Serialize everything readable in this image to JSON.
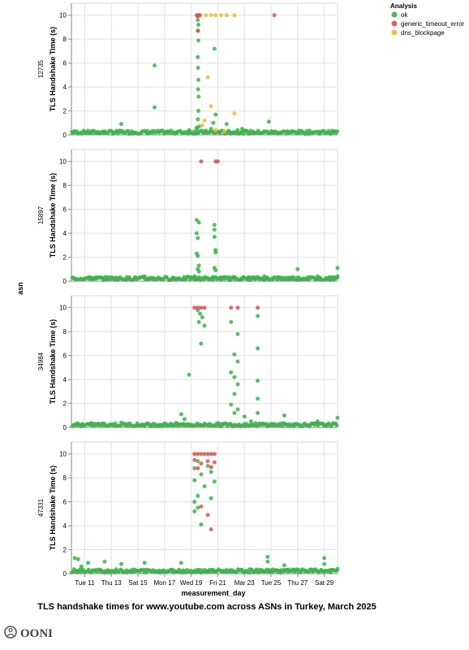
{
  "chart_data": {
    "type": "scatter",
    "title": "TLS handshake times for www.youtube.com across ASNs in Turkey, March 2025",
    "xlabel": "measurement_day",
    "ylabel": "TLS Handshake Time (s)",
    "row_label": "asn",
    "x_ticks": [
      "Tue 11",
      "Thu 13",
      "Sat 15",
      "Mon 17",
      "Wed 19",
      "Fri 21",
      "Mar 23",
      "Tue 25",
      "Thu 27",
      "Sat 29"
    ],
    "x_range": [
      "2025-03-10",
      "2025-03-30"
    ],
    "y_ticks": [
      0,
      2,
      4,
      6,
      8,
      10
    ],
    "ylim": [
      0,
      11
    ],
    "grid": true,
    "legend": {
      "title": "Analysis",
      "position": "top-right",
      "entries": [
        {
          "label": "ok",
          "color": "#3cb44b"
        },
        {
          "label": "generic_timeout_error",
          "color": "#d9534f"
        },
        {
          "label": "dns_blockpage",
          "color": "#f5b731"
        }
      ]
    },
    "facets": [
      {
        "asn": "12735",
        "series": {
          "ok": [
            [
              "2025-03-16T06:00",
              5.8
            ],
            [
              "2025-03-16T06:00",
              2.3
            ],
            [
              "2025-03-13T18:00",
              0.9
            ],
            [
              "2025-03-19T12:00",
              9.6
            ],
            [
              "2025-03-19T13:00",
              9.2
            ],
            [
              "2025-03-19T12:30",
              8.7
            ],
            [
              "2025-03-19T13:00",
              7.9
            ],
            [
              "2025-03-19T12:00",
              6.5
            ],
            [
              "2025-03-19T12:30",
              5.6
            ],
            [
              "2025-03-19T13:00",
              4.6
            ],
            [
              "2025-03-19T12:30",
              3.8
            ],
            [
              "2025-03-19T13:30",
              3.2
            ],
            [
              "2025-03-19T13:00",
              2.0
            ],
            [
              "2025-03-19T12:00",
              1.3
            ],
            [
              "2025-03-19T10:00",
              0.6
            ],
            [
              "2025-03-19T14:00",
              0.7
            ],
            [
              "2025-03-19T11:00",
              0.4
            ],
            [
              "2025-03-20T18:00",
              7.2
            ],
            [
              "2025-03-20T20:00",
              1.7
            ],
            [
              "2025-03-20T16:00",
              1.0
            ],
            [
              "2025-03-21T16:00",
              0.9
            ],
            [
              "2025-03-22T12:00",
              0.4
            ],
            [
              "2025-03-22T20:00",
              0.5
            ],
            [
              "2025-03-24T20:00",
              1.1
            ],
            [
              "2025-03-18T20:00",
              0.4
            ],
            [
              "2025-03-20T12:00",
              0.5
            ]
          ],
          "generic_timeout_error": [
            [
              "2025-03-19T10:00",
              10.0
            ],
            [
              "2025-03-19T13:00",
              10.0
            ],
            [
              "2025-03-19T16:00",
              10.0
            ],
            [
              "2025-03-19T12:00",
              8.7
            ],
            [
              "2025-03-25T06:00",
              10.0
            ],
            [
              "2025-03-19T12:00",
              9.9
            ]
          ],
          "dns_blockpage": [
            [
              "2025-03-20T03:00",
              10.0
            ],
            [
              "2025-03-20T12:00",
              10.0
            ],
            [
              "2025-03-20T20:00",
              10.0
            ],
            [
              "2025-03-21T06:00",
              10.0
            ],
            [
              "2025-03-21T16:00",
              10.0
            ],
            [
              "2025-03-22T06:00",
              10.0
            ],
            [
              "2025-03-20T06:00",
              4.8
            ],
            [
              "2025-03-20T12:00",
              2.4
            ],
            [
              "2025-03-22T06:00",
              1.8
            ],
            [
              "2025-03-20T00:00",
              1.2
            ],
            [
              "2025-03-19T20:00",
              0.8
            ],
            [
              "2025-03-20T20:00",
              0.4
            ],
            [
              "2025-03-21T12:00",
              0.3
            ]
          ]
        }
      },
      {
        "asn": "15897",
        "series": {
          "ok": [
            [
              "2025-03-11T12:00",
              0.3
            ],
            [
              "2025-03-11T20:00",
              0.2
            ],
            [
              "2025-03-12T18:00",
              0.15
            ],
            [
              "2025-03-15T12:00",
              0.4
            ],
            [
              "2025-03-15T18:00",
              0.2
            ],
            [
              "2025-03-18T14:00",
              0.2
            ],
            [
              "2025-03-19T06:00",
              0.4
            ],
            [
              "2025-03-19T10:00",
              5.1
            ],
            [
              "2025-03-19T14:00",
              4.9
            ],
            [
              "2025-03-19T10:00",
              4.0
            ],
            [
              "2025-03-19T12:00",
              3.6
            ],
            [
              "2025-03-19T10:00",
              2.3
            ],
            [
              "2025-03-19T12:00",
              2.1
            ],
            [
              "2025-03-19T14:00",
              1.3
            ],
            [
              "2025-03-19T12:00",
              1.0
            ],
            [
              "2025-03-19T14:00",
              0.8
            ],
            [
              "2025-03-20T18:00",
              4.7
            ],
            [
              "2025-03-20T18:00",
              4.3
            ],
            [
              "2025-03-20T18:00",
              3.7
            ],
            [
              "2025-03-20T20:00",
              2.6
            ],
            [
              "2025-03-20T20:00",
              2.4
            ],
            [
              "2025-03-20T18:00",
              1.1
            ],
            [
              "2025-03-20T20:00",
              0.9
            ],
            [
              "2025-03-21T06:00",
              0.25
            ],
            [
              "2025-03-21T12:00",
              0.2
            ],
            [
              "2025-03-22T06:00",
              0.3
            ],
            [
              "2025-03-22T18:00",
              0.2
            ],
            [
              "2025-03-23T18:00",
              0.2
            ],
            [
              "2025-03-24T12:00",
              0.4
            ],
            [
              "2025-03-25T06:00",
              0.3
            ],
            [
              "2025-03-25T18:00",
              0.2
            ],
            [
              "2025-03-26T12:00",
              0.3
            ],
            [
              "2025-03-27T00:00",
              1.0
            ],
            [
              "2025-03-27T18:00",
              0.3
            ],
            [
              "2025-03-28T12:00",
              0.4
            ],
            [
              "2025-03-29T12:00",
              0.3
            ],
            [
              "2025-03-30T00:00",
              1.1
            ],
            [
              "2025-03-30T00:00",
              0.4
            ]
          ],
          "generic_timeout_error": [
            [
              "2025-03-19T18:00",
              10.0
            ],
            [
              "2025-03-20T20:00",
              10.0
            ],
            [
              "2025-03-21T00:00",
              10.0
            ]
          ],
          "dns_blockpage": []
        }
      },
      {
        "asn": "34984",
        "series": {
          "ok": [
            [
              "2025-03-10T12:00",
              0.2
            ],
            [
              "2025-03-10T18:00",
              0.2
            ],
            [
              "2025-03-11T12:00",
              0.2
            ],
            [
              "2025-03-13T18:00",
              0.4
            ],
            [
              "2025-03-15T12:00",
              0.2
            ],
            [
              "2025-03-17T12:00",
              0.3
            ],
            [
              "2025-03-18T06:00",
              1.1
            ],
            [
              "2025-03-18T12:00",
              0.7
            ],
            [
              "2025-03-18T20:00",
              4.4
            ],
            [
              "2025-03-19T12:00",
              9.8
            ],
            [
              "2025-03-19T16:00",
              9.5
            ],
            [
              "2025-03-19T20:00",
              9.2
            ],
            [
              "2025-03-19T14:00",
              8.8
            ],
            [
              "2025-03-20T00:00",
              8.5
            ],
            [
              "2025-03-19T18:00",
              7.0
            ],
            [
              "2025-03-22T00:00",
              8.8
            ],
            [
              "2025-03-22T12:00",
              7.8
            ],
            [
              "2025-03-22T06:00",
              6.1
            ],
            [
              "2025-03-22T12:00",
              5.5
            ],
            [
              "2025-03-22T00:00",
              4.6
            ],
            [
              "2025-03-22T06:00",
              4.2
            ],
            [
              "2025-03-22T12:00",
              3.6
            ],
            [
              "2025-03-22T06:00",
              2.8
            ],
            [
              "2025-03-22T00:00",
              1.9
            ],
            [
              "2025-03-22T12:00",
              1.5
            ],
            [
              "2025-03-22T06:00",
              1.2
            ],
            [
              "2025-03-23T00:00",
              0.9
            ],
            [
              "2025-03-23T12:00",
              0.5
            ],
            [
              "2025-03-24T00:00",
              9.3
            ],
            [
              "2025-03-24T00:00",
              6.6
            ],
            [
              "2025-03-24T00:00",
              3.9
            ],
            [
              "2025-03-24T00:00",
              2.4
            ],
            [
              "2025-03-24T00:00",
              1.2
            ],
            [
              "2025-03-26T00:00",
              1.0
            ],
            [
              "2025-03-28T12:00",
              0.5
            ],
            [
              "2025-03-30T00:00",
              0.8
            ]
          ],
          "generic_timeout_error": [
            [
              "2025-03-19T06:00",
              10.0
            ],
            [
              "2025-03-19T12:00",
              10.0
            ],
            [
              "2025-03-19T18:00",
              10.0
            ],
            [
              "2025-03-20T00:00",
              10.0
            ],
            [
              "2025-03-22T00:00",
              10.0
            ],
            [
              "2025-03-22T12:00",
              10.0
            ],
            [
              "2025-03-24T00:00",
              10.0
            ]
          ],
          "dns_blockpage": []
        }
      },
      {
        "asn": "47331",
        "series": {
          "ok": [
            [
              "2025-03-10T06:00",
              1.3
            ],
            [
              "2025-03-10T12:00",
              1.2
            ],
            [
              "2025-03-10T18:00",
              0.6
            ],
            [
              "2025-03-11T06:00",
              0.9
            ],
            [
              "2025-03-12T12:00",
              1.0
            ],
            [
              "2025-03-13T18:00",
              0.8
            ],
            [
              "2025-03-15T12:00",
              0.9
            ],
            [
              "2025-03-18T06:00",
              0.9
            ],
            [
              "2025-03-19T06:00",
              8.8
            ],
            [
              "2025-03-19T12:00",
              9.4
            ],
            [
              "2025-03-19T18:00",
              8.3
            ],
            [
              "2025-03-19T06:00",
              7.8
            ],
            [
              "2025-03-19T12:00",
              6.5
            ],
            [
              "2025-03-19T06:00",
              6.0
            ],
            [
              "2025-03-19T12:00",
              5.5
            ],
            [
              "2025-03-19T06:00",
              5.2
            ],
            [
              "2025-03-19T18:00",
              4.1
            ],
            [
              "2025-03-20T06:00",
              9.0
            ],
            [
              "2025-03-20T12:00",
              8.5
            ],
            [
              "2025-03-20T18:00",
              7.7
            ],
            [
              "2025-03-20T00:00",
              7.3
            ],
            [
              "2025-03-20T12:00",
              6.3
            ],
            [
              "2025-03-24T18:00",
              1.4
            ],
            [
              "2025-03-24T18:00",
              1.0
            ],
            [
              "2025-03-26T00:00",
              0.7
            ],
            [
              "2025-03-29T00:00",
              1.3
            ],
            [
              "2025-03-29T00:00",
              0.8
            ],
            [
              "2025-03-30T00:00",
              0.4
            ]
          ],
          "generic_timeout_error": [
            [
              "2025-03-19T06:00",
              10.0
            ],
            [
              "2025-03-19T12:00",
              10.0
            ],
            [
              "2025-03-19T18:00",
              10.0
            ],
            [
              "2025-03-20T00:00",
              10.0
            ],
            [
              "2025-03-20T06:00",
              10.0
            ],
            [
              "2025-03-20T12:00",
              10.0
            ],
            [
              "2025-03-20T18:00",
              10.0
            ],
            [
              "2025-03-19T06:00",
              9.5
            ],
            [
              "2025-03-19T18:00",
              9.2
            ],
            [
              "2025-03-20T06:00",
              9.4
            ],
            [
              "2025-03-20T18:00",
              9.3
            ],
            [
              "2025-03-19T12:00",
              8.8
            ],
            [
              "2025-03-20T12:00",
              8.9
            ],
            [
              "2025-03-19T18:00",
              5.6
            ],
            [
              "2025-03-20T06:00",
              4.9
            ],
            [
              "2025-03-20T12:00",
              3.7
            ]
          ],
          "dns_blockpage": []
        }
      }
    ]
  },
  "footer": {
    "logo_text": "OONI"
  }
}
